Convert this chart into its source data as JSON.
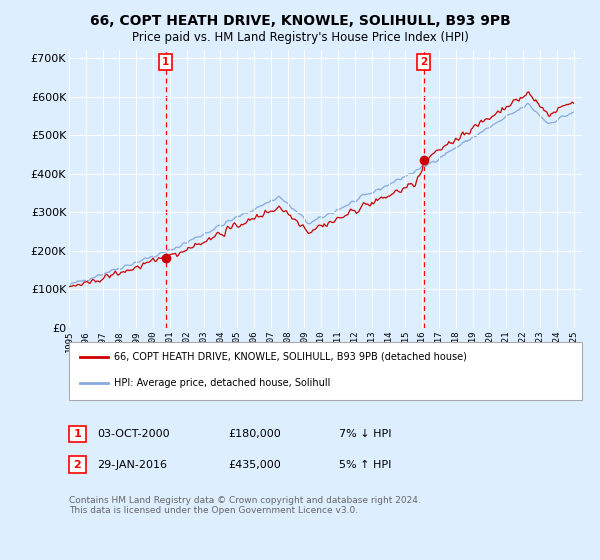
{
  "title": "66, COPT HEATH DRIVE, KNOWLE, SOLIHULL, B93 9PB",
  "subtitle": "Price paid vs. HM Land Registry's House Price Index (HPI)",
  "bg_color": "#ddeeff",
  "legend_label_red": "66, COPT HEATH DRIVE, KNOWLE, SOLIHULL, B93 9PB (detached house)",
  "legend_label_blue": "HPI: Average price, detached house, Solihull",
  "footnote": "Contains HM Land Registry data © Crown copyright and database right 2024.\nThis data is licensed under the Open Government Licence v3.0.",
  "marker1_date": "03-OCT-2000",
  "marker1_price": "£180,000",
  "marker1_hpi": "7% ↓ HPI",
  "marker1_year": 2000.75,
  "marker2_date": "29-JAN-2016",
  "marker2_price": "£435,000",
  "marker2_hpi": "5% ↑ HPI",
  "marker2_year": 2016.08,
  "ylim": [
    0,
    720000
  ],
  "yticks": [
    0,
    100000,
    200000,
    300000,
    400000,
    500000,
    600000,
    700000
  ],
  "red_color": "#cc0000",
  "blue_color": "#88aadd"
}
